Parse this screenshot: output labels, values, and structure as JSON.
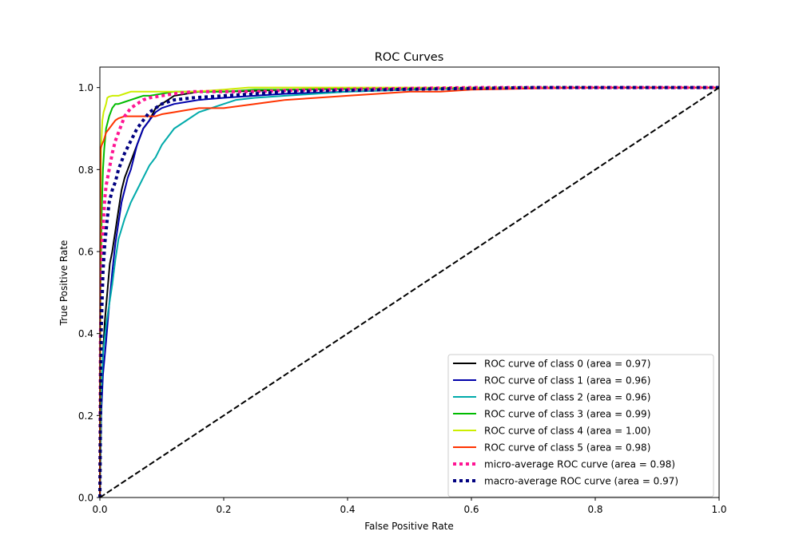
{
  "chart_data": {
    "type": "line",
    "title": "ROC Curves",
    "xlabel": "False Positive Rate",
    "ylabel": "True Positive Rate",
    "xlim": [
      0.0,
      1.0
    ],
    "ylim": [
      0.0,
      1.05
    ],
    "xticks": [
      0.0,
      0.2,
      0.4,
      0.6,
      0.8,
      1.0
    ],
    "yticks": [
      0.0,
      0.2,
      0.4,
      0.6,
      0.8,
      1.0
    ],
    "xtick_labels": [
      "0.0",
      "0.2",
      "0.4",
      "0.6",
      "0.8",
      "1.0"
    ],
    "ytick_labels": [
      "0.0",
      "0.2",
      "0.4",
      "0.6",
      "0.8",
      "1.0"
    ],
    "grid": false,
    "legend_position": "lower-right",
    "series": [
      {
        "name": "ROC curve of class 0 (area = 0.97)",
        "color": "#000000",
        "style": "solid",
        "x": [
          0,
          0.002,
          0.005,
          0.008,
          0.012,
          0.016,
          0.02,
          0.025,
          0.03,
          0.035,
          0.04,
          0.045,
          0.05,
          0.055,
          0.06,
          0.07,
          0.08,
          0.09,
          0.1,
          0.11,
          0.12,
          0.14,
          0.16,
          0.18,
          0.2,
          0.25,
          0.3,
          0.4,
          0.5,
          0.6,
          0.7,
          0.8,
          0.9,
          1.0
        ],
        "y": [
          0,
          0.2,
          0.35,
          0.43,
          0.5,
          0.57,
          0.6,
          0.65,
          0.7,
          0.75,
          0.78,
          0.8,
          0.82,
          0.84,
          0.86,
          0.9,
          0.92,
          0.95,
          0.96,
          0.97,
          0.98,
          0.985,
          0.99,
          0.99,
          0.99,
          0.992,
          0.995,
          0.997,
          0.998,
          0.999,
          1.0,
          1.0,
          1.0,
          1.0
        ]
      },
      {
        "name": "ROC curve of class 1 (area = 0.96)",
        "color": "#0000aa",
        "style": "solid",
        "x": [
          0,
          0.002,
          0.005,
          0.01,
          0.015,
          0.02,
          0.025,
          0.03,
          0.035,
          0.04,
          0.045,
          0.05,
          0.055,
          0.06,
          0.07,
          0.08,
          0.09,
          0.1,
          0.12,
          0.14,
          0.16,
          0.2,
          0.25,
          0.3,
          0.4,
          0.5,
          0.6,
          0.7,
          0.8,
          0.9,
          1.0
        ],
        "y": [
          0,
          0.2,
          0.3,
          0.38,
          0.47,
          0.55,
          0.62,
          0.67,
          0.72,
          0.75,
          0.78,
          0.8,
          0.83,
          0.86,
          0.9,
          0.92,
          0.94,
          0.95,
          0.96,
          0.965,
          0.97,
          0.975,
          0.98,
          0.985,
          0.99,
          0.995,
          0.998,
          1.0,
          1.0,
          1.0,
          1.0
        ]
      },
      {
        "name": "ROC curve of class 2 (area = 0.96)",
        "color": "#00aaaa",
        "style": "solid",
        "x": [
          0,
          0.002,
          0.005,
          0.01,
          0.015,
          0.02,
          0.025,
          0.03,
          0.04,
          0.05,
          0.06,
          0.07,
          0.08,
          0.09,
          0.1,
          0.11,
          0.12,
          0.13,
          0.14,
          0.16,
          0.18,
          0.2,
          0.22,
          0.25,
          0.3,
          0.4,
          0.5,
          0.6,
          0.7,
          0.8,
          0.9,
          1.0
        ],
        "y": [
          0,
          0.25,
          0.35,
          0.42,
          0.47,
          0.52,
          0.58,
          0.63,
          0.68,
          0.72,
          0.75,
          0.78,
          0.81,
          0.83,
          0.86,
          0.88,
          0.9,
          0.91,
          0.92,
          0.94,
          0.95,
          0.96,
          0.97,
          0.975,
          0.98,
          0.99,
          0.995,
          0.998,
          1.0,
          1.0,
          1.0,
          1.0
        ]
      },
      {
        "name": "ROC curve of class 3 (area = 0.99)",
        "color": "#00bb00",
        "style": "solid",
        "x": [
          0,
          0.001,
          0.003,
          0.005,
          0.007,
          0.01,
          0.015,
          0.02,
          0.025,
          0.03,
          0.04,
          0.05,
          0.06,
          0.07,
          0.08,
          0.1,
          0.12,
          0.15,
          0.2,
          0.25,
          0.3,
          0.4,
          0.5,
          0.6,
          0.7,
          0.8,
          0.9,
          1.0
        ],
        "y": [
          0,
          0.5,
          0.7,
          0.8,
          0.85,
          0.9,
          0.93,
          0.95,
          0.96,
          0.96,
          0.965,
          0.97,
          0.975,
          0.98,
          0.98,
          0.985,
          0.99,
          0.99,
          0.99,
          0.995,
          0.995,
          0.997,
          0.998,
          0.999,
          1.0,
          1.0,
          1.0,
          1.0
        ]
      },
      {
        "name": "ROC curve of class 4 (area = 1.00)",
        "color": "#ccee00",
        "style": "solid",
        "x": [
          0,
          0.001,
          0.002,
          0.004,
          0.006,
          0.008,
          0.01,
          0.012,
          0.015,
          0.02,
          0.03,
          0.04,
          0.05,
          0.07,
          0.1,
          0.15,
          0.2,
          0.24,
          0.3,
          0.4,
          0.5,
          0.6,
          0.7,
          0.8,
          0.9,
          1.0
        ],
        "y": [
          0,
          0.7,
          0.85,
          0.92,
          0.94,
          0.95,
          0.96,
          0.975,
          0.978,
          0.98,
          0.98,
          0.985,
          0.99,
          0.99,
          0.99,
          0.99,
          0.995,
          1.0,
          1.0,
          1.0,
          1.0,
          1.0,
          1.0,
          1.0,
          1.0,
          1.0
        ]
      },
      {
        "name": "ROC curve of class 5 (area = 0.98)",
        "color": "#ff3300",
        "style": "solid",
        "x": [
          0,
          0.0005,
          0.001,
          0.003,
          0.006,
          0.01,
          0.015,
          0.02,
          0.025,
          0.03,
          0.04,
          0.05,
          0.07,
          0.09,
          0.1,
          0.12,
          0.14,
          0.16,
          0.2,
          0.25,
          0.3,
          0.35,
          0.4,
          0.45,
          0.5,
          0.55,
          0.6,
          0.7,
          0.8,
          0.9,
          1.0
        ],
        "y": [
          0,
          0.6,
          0.85,
          0.86,
          0.87,
          0.89,
          0.9,
          0.91,
          0.92,
          0.925,
          0.93,
          0.93,
          0.93,
          0.93,
          0.935,
          0.94,
          0.945,
          0.95,
          0.95,
          0.96,
          0.97,
          0.975,
          0.98,
          0.985,
          0.99,
          0.99,
          0.995,
          0.998,
          1.0,
          1.0,
          1.0
        ]
      },
      {
        "name": "micro-average ROC curve (area = 0.98)",
        "color": "#ff1493",
        "style": "dotted",
        "x": [
          0,
          0.001,
          0.003,
          0.005,
          0.008,
          0.01,
          0.015,
          0.02,
          0.025,
          0.03,
          0.035,
          0.04,
          0.05,
          0.06,
          0.07,
          0.08,
          0.1,
          0.12,
          0.15,
          0.2,
          0.25,
          0.3,
          0.4,
          0.5,
          0.6,
          0.7,
          0.8,
          0.9,
          1.0
        ],
        "y": [
          0,
          0.4,
          0.55,
          0.65,
          0.73,
          0.76,
          0.8,
          0.84,
          0.87,
          0.89,
          0.91,
          0.93,
          0.95,
          0.96,
          0.97,
          0.975,
          0.98,
          0.985,
          0.99,
          0.99,
          0.99,
          0.993,
          0.996,
          0.998,
          1.0,
          1.0,
          1.0,
          1.0,
          1.0
        ]
      },
      {
        "name": "macro-average ROC curve (area = 0.97)",
        "color": "#000080",
        "style": "dotted",
        "x": [
          0,
          0.002,
          0.005,
          0.008,
          0.012,
          0.015,
          0.02,
          0.025,
          0.03,
          0.04,
          0.05,
          0.06,
          0.07,
          0.08,
          0.09,
          0.1,
          0.12,
          0.15,
          0.2,
          0.25,
          0.3,
          0.4,
          0.5,
          0.6,
          0.7,
          0.8,
          0.9,
          1.0
        ],
        "y": [
          0,
          0.4,
          0.55,
          0.62,
          0.68,
          0.72,
          0.75,
          0.77,
          0.8,
          0.84,
          0.87,
          0.9,
          0.92,
          0.94,
          0.95,
          0.96,
          0.97,
          0.975,
          0.98,
          0.985,
          0.99,
          0.993,
          0.996,
          0.998,
          1.0,
          1.0,
          1.0,
          1.0
        ]
      },
      {
        "name": "",
        "color": "#000000",
        "style": "dashed",
        "x": [
          0,
          1
        ],
        "y": [
          0,
          1
        ]
      }
    ]
  }
}
